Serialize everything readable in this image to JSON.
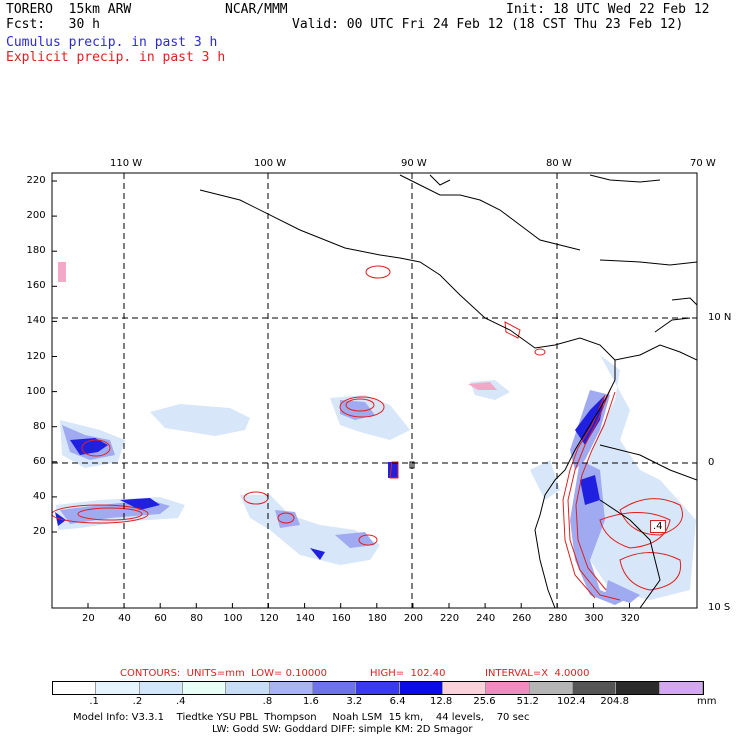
{
  "header": {
    "model": "TORERO  15km ARW",
    "center": "NCAR/MMM",
    "init": "Init: 18 UTC Wed 22 Feb 12",
    "fcst": "Fcst:   30 h",
    "valid": "Valid: 00 UTC Fri 24 Feb 12 (18 CST Thu 23 Feb 12)",
    "legend_cumulus": "Cumulus precip. in past 3 h",
    "legend_explicit": "Explicit precip. in past 3 h"
  },
  "map": {
    "lon_labels": [
      "110 W",
      "100 W",
      "90 W",
      "80 W",
      "70 W"
    ],
    "lat_labels": [
      "10 N",
      "0",
      "10 S"
    ],
    "x_ticks": [
      "20",
      "40",
      "60",
      "80",
      "100",
      "120",
      "140",
      "160",
      "180",
      "200",
      "220",
      "240",
      "260",
      "280",
      "300",
      "320"
    ],
    "y_ticks": [
      "220",
      "200",
      "180",
      "160",
      "140",
      "120",
      "100",
      "80",
      "60",
      "40",
      "20"
    ],
    "max_label": ".4"
  },
  "contours_line": {
    "contours": "CONTOURS:  UNITS=mm  LOW= 0.10000",
    "high": "HIGH=  102.40",
    "interval": "INTERVAL=X  4.0000"
  },
  "colorbar": {
    "labels": [
      ".1",
      ".2",
      ".4",
      ".8",
      "1.6",
      "3.2",
      "6.4",
      "12.8",
      "25.6",
      "51.2",
      "102.4",
      "204.8"
    ],
    "unit": "mm",
    "colors": [
      "#ffffff",
      "#e6f4ff",
      "#d2e8fa",
      "#e8fff8",
      "#c7ddf6",
      "#a9b5f2",
      "#6d73ea",
      "#3a3af0",
      "#0b0be8",
      "#f9d2dc",
      "#f08cc0",
      "#b5b5b5",
      "#555555",
      "#2a2a2a",
      "#d4a8f0"
    ]
  },
  "footer": {
    "line1": "Model Info: V3.3.1    Tiedtke YSU PBL  Thompson     Noah LSM  15 km,    44 levels,    70 sec",
    "line2": "LW: Godd SW: Goddard DIFF: simple KM: 2D Smagor"
  }
}
